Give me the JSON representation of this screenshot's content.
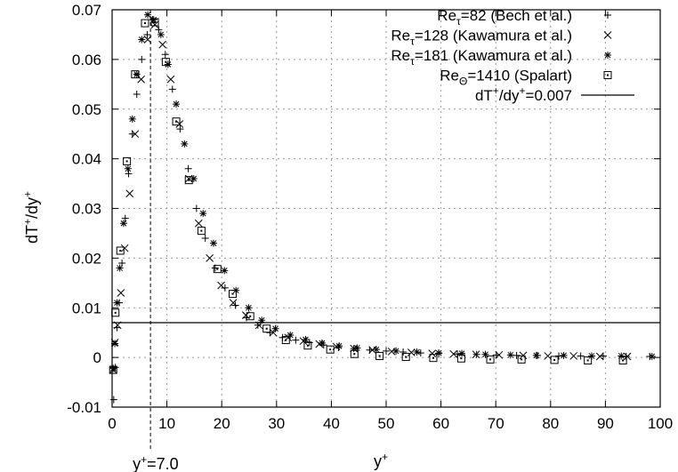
{
  "chart_data": {
    "type": "scatter",
    "xlabel": "y+",
    "ylabel": "dT+/dy+",
    "xlim": [
      0,
      100
    ],
    "ylim": [
      -0.01,
      0.07
    ],
    "x_ticks": [
      0,
      10,
      20,
      30,
      40,
      50,
      60,
      70,
      80,
      90,
      100
    ],
    "y_ticks": [
      -0.01,
      0,
      0.01,
      0.02,
      0.03,
      0.04,
      0.05,
      0.06,
      0.07
    ],
    "x_tick_labels": [
      "0",
      "10",
      "20",
      "30",
      "40",
      "50",
      "60",
      "70",
      "80",
      "90",
      "100"
    ],
    "y_tick_labels": [
      "-0.01",
      "0",
      "0.01",
      "0.02",
      "0.03",
      "0.04",
      "0.05",
      "0.06",
      "0.07"
    ],
    "grid": true,
    "legend_position": "top-right",
    "vline": {
      "x": 7.0,
      "label": "y+=7.0"
    },
    "series": [
      {
        "name": "Reτ=82 (Bech et al.)",
        "marker": "plus",
        "x": [
          0.3,
          0.6,
          0.9,
          1.3,
          1.8,
          2.4,
          3.0,
          3.7,
          4.5,
          5.4,
          6.4,
          7.4,
          8.5,
          9.7,
          11.0,
          12.4,
          13.9,
          15.4,
          17.0,
          18.8,
          20.6,
          22.5,
          24.5,
          26.6,
          28.8,
          31.1,
          33.5,
          36.0,
          38.6,
          41.3,
          44.1,
          47.0,
          50.0,
          53.1,
          56.3,
          59.6,
          63.0,
          66.5,
          70.1,
          73.8,
          77.6,
          81.5,
          85.5,
          89.6,
          93.8,
          98.1
        ],
        "y": [
          -0.0085,
          -0.002,
          0.006,
          0.011,
          0.019,
          0.028,
          0.037,
          0.045,
          0.053,
          0.06,
          0.065,
          0.068,
          0.066,
          0.061,
          0.054,
          0.046,
          0.038,
          0.03,
          0.024,
          0.018,
          0.014,
          0.0105,
          0.008,
          0.0065,
          0.005,
          0.004,
          0.0035,
          0.003,
          0.0025,
          0.002,
          0.0018,
          0.0015,
          0.0013,
          0.0011,
          0.0009,
          0.0008,
          0.0007,
          0.0006,
          0.0005,
          0.0004,
          0.0004,
          0.0003,
          0.0003,
          0.0003,
          0.0002,
          0.0002
        ]
      },
      {
        "name": "Reτ=128 (Kawamura et al.)",
        "marker": "cross",
        "x": [
          0.2,
          0.5,
          1.0,
          1.6,
          2.3,
          3.2,
          4.2,
          5.3,
          6.5,
          7.8,
          9.2,
          10.7,
          12.3,
          14.0,
          15.8,
          17.8,
          19.9,
          22.1,
          24.4,
          26.8,
          29.4,
          32.1,
          34.9,
          37.8,
          40.9,
          44.1,
          47.5,
          51.0,
          54.6,
          58.4,
          62.3,
          66.4,
          70.6,
          75.0,
          79.5,
          84.2,
          89.0,
          94.0
        ],
        "y": [
          -0.0025,
          0.003,
          0.0065,
          0.013,
          0.022,
          0.033,
          0.045,
          0.056,
          0.064,
          0.067,
          0.063,
          0.056,
          0.047,
          0.036,
          0.027,
          0.02,
          0.0145,
          0.011,
          0.0085,
          0.0065,
          0.005,
          0.004,
          0.0033,
          0.0027,
          0.0022,
          0.0018,
          0.0015,
          0.0012,
          0.001,
          0.0008,
          0.0007,
          0.0006,
          0.0005,
          0.0004,
          0.0003,
          0.0003,
          0.0002,
          0.0002
        ]
      },
      {
        "name": "Reτ=181 (Kawamura et al.)",
        "marker": "star",
        "x": [
          0.2,
          0.5,
          0.9,
          1.4,
          2.1,
          2.9,
          3.7,
          4.5,
          5.4,
          6.5,
          7.6,
          8.9,
          10.2,
          11.7,
          13.2,
          14.9,
          16.6,
          18.5,
          20.5,
          22.6,
          24.9,
          27.3,
          29.8,
          32.5,
          35.3,
          38.3,
          41.4,
          44.7,
          48.2,
          51.8,
          55.6,
          59.6,
          63.8,
          68.1,
          72.7,
          77.4,
          82.4,
          87.5,
          92.9,
          98.5
        ],
        "y": [
          -0.0022,
          0.0028,
          0.011,
          0.018,
          0.027,
          0.038,
          0.048,
          0.057,
          0.064,
          0.069,
          0.068,
          0.065,
          0.059,
          0.051,
          0.043,
          0.036,
          0.029,
          0.023,
          0.0175,
          0.0135,
          0.01,
          0.0075,
          0.0058,
          0.0045,
          0.0036,
          0.0029,
          0.0023,
          0.0019,
          0.0016,
          0.0013,
          0.0011,
          0.0009,
          0.0008,
          0.0006,
          0.0005,
          0.0004,
          0.0004,
          0.0003,
          0.0003,
          0.0002
        ]
      },
      {
        "name": "ReΘ=1410 (Spalart)",
        "marker": "square-dot",
        "x": [
          0.2,
          0.6,
          1.5,
          2.7,
          4.2,
          6.0,
          7.8,
          9.8,
          11.7,
          14.0,
          16.3,
          19.2,
          22.0,
          25.2,
          28.2,
          31.7,
          35.7,
          39.8,
          44.2,
          48.8,
          53.6,
          58.6,
          63.7,
          69.0,
          74.7,
          80.7,
          86.8,
          93.2
        ],
        "y": [
          -0.0025,
          0.009,
          0.0215,
          0.0395,
          0.057,
          0.0673,
          0.0675,
          0.0595,
          0.0475,
          0.0357,
          0.0255,
          0.0178,
          0.0128,
          0.0083,
          0.0058,
          0.0035,
          0.0024,
          0.0016,
          0.0007,
          0.0003,
          0.0001,
          -0.0001,
          -0.0002,
          -0.0004,
          -0.0004,
          -0.0005,
          -0.0006,
          -0.0006
        ]
      },
      {
        "name": "dT+/dy+=0.007",
        "marker": "line",
        "x": [
          0,
          100
        ],
        "y": [
          0.007,
          0.007
        ]
      }
    ]
  }
}
